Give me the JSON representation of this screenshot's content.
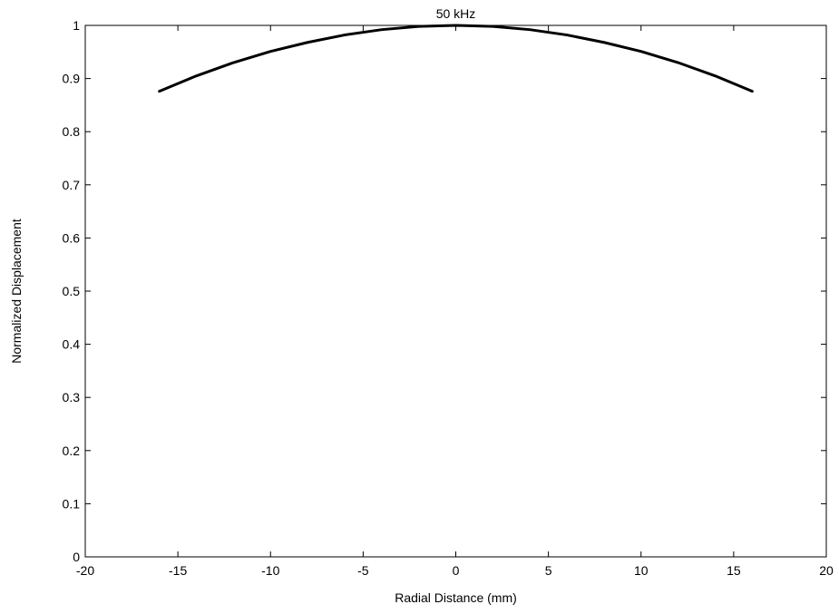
{
  "chart_data": {
    "type": "line",
    "title": "50 kHz",
    "xlabel": "Radial Distance (mm)",
    "ylabel": "Normalized Displacement",
    "xlim": [
      -20,
      20
    ],
    "ylim": [
      0,
      1
    ],
    "xticks": [
      -20,
      -15,
      -10,
      -5,
      0,
      5,
      10,
      15,
      20
    ],
    "yticks": [
      0,
      0.1,
      0.2,
      0.3,
      0.4,
      0.5,
      0.6,
      0.7,
      0.8,
      0.9,
      1
    ],
    "grid": false,
    "legend": "none",
    "series": [
      {
        "color": "#000000",
        "x": [
          -16,
          -14,
          -12,
          -10,
          -8,
          -6,
          -4,
          -2,
          0,
          2,
          4,
          6,
          8,
          10,
          12,
          14,
          16
        ],
        "y": [
          0.876,
          0.905,
          0.93,
          0.951,
          0.968,
          0.982,
          0.992,
          0.998,
          1.0,
          0.998,
          0.992,
          0.982,
          0.968,
          0.951,
          0.93,
          0.905,
          0.876
        ]
      }
    ]
  }
}
